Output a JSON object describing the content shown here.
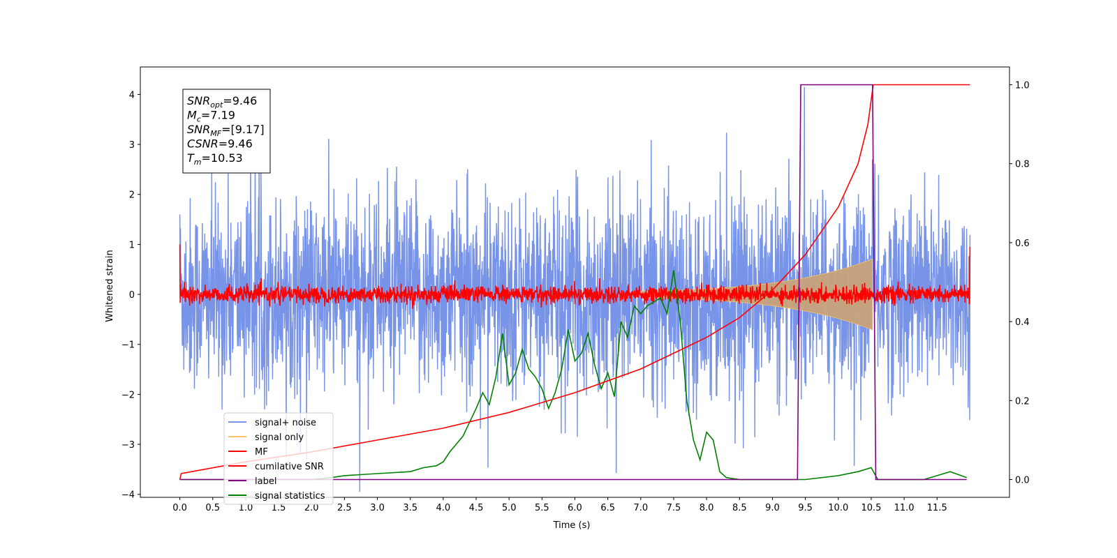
{
  "chart_data": {
    "type": "line",
    "xlabel": "Time (s)",
    "ylabel": "Whitened strain",
    "xlim": [
      -0.6,
      12.6
    ],
    "ylim": [
      -4.06,
      4.55
    ],
    "y2lim": [
      -0.045,
      1.045
    ],
    "x_ticks": [
      "0.0",
      "0.5",
      "1.0",
      "1.5",
      "2.0",
      "2.5",
      "3.0",
      "3.5",
      "4.0",
      "4.5",
      "5.0",
      "5.5",
      "6.0",
      "6.5",
      "7.0",
      "7.5",
      "8.0",
      "8.5",
      "9.0",
      "9.5",
      "10.0",
      "10.5",
      "11.0",
      "11.5"
    ],
    "y_ticks": [
      "4",
      "3",
      "2",
      "1",
      "0",
      "−1",
      "−2",
      "−3",
      "−4"
    ],
    "y2_ticks": [
      "1.0",
      "0.8",
      "0.6",
      "0.4",
      "0.2",
      "0.0"
    ],
    "grid": false,
    "legend_position": "lower-left",
    "annotation": [
      {
        "main": "SNR",
        "sub": "opt",
        "rest": "=9.46"
      },
      {
        "main": "M",
        "sub": "c",
        "rest": "=7.19"
      },
      {
        "main": "SNR",
        "sub": "MF",
        "rest": "=[9.17]"
      },
      {
        "main": "CSNR",
        "sub": "",
        "rest": "=9.46"
      },
      {
        "main": "T",
        "sub": "m",
        "rest": "=10.53"
      }
    ],
    "series": [
      {
        "name": "signal+ noise",
        "color": "#7894e8",
        "axis": "left",
        "description": "white noise, amplitude ~ ±2.3 with spikes to ±4.1, t = 0 to 12"
      },
      {
        "name": "signal only",
        "color": "#f5c26b",
        "axis": "left",
        "description": "chirp growing from 0 to amplitude ~0.7 up to 10.53 s"
      },
      {
        "name": "MF",
        "color": "#ff0000",
        "axis": "left",
        "description": "matched filter output, noise ~ ±0.15, endpoints 1.0 / 0.95"
      },
      {
        "name": "cumilative SNR",
        "color": "#ff0000",
        "axis": "right",
        "x": [
          0.0,
          0.02,
          1.0,
          2.0,
          3.0,
          4.0,
          5.0,
          6.0,
          7.0,
          7.5,
          8.0,
          8.5,
          9.0,
          9.5,
          10.0,
          10.3,
          10.45,
          10.53,
          10.6,
          12.0
        ],
        "y": [
          0.0,
          0.015,
          0.045,
          0.07,
          0.1,
          0.13,
          0.17,
          0.22,
          0.28,
          0.32,
          0.36,
          0.41,
          0.48,
          0.57,
          0.69,
          0.8,
          0.9,
          1.0,
          1.0,
          1.0
        ]
      },
      {
        "name": "label",
        "color": "#800080",
        "axis": "right",
        "x": [
          0.0,
          9.38,
          9.43,
          10.52,
          10.57,
          11.95
        ],
        "y": [
          0.0,
          0.0,
          1.0,
          1.0,
          0.0,
          0.0
        ]
      },
      {
        "name": "signal statistics",
        "color": "#008000",
        "axis": "right",
        "x": [
          0.0,
          0.5,
          1.0,
          1.5,
          2.0,
          2.3,
          2.5,
          3.0,
          3.5,
          3.7,
          3.9,
          4.0,
          4.1,
          4.2,
          4.3,
          4.5,
          4.6,
          4.7,
          4.8,
          4.9,
          5.0,
          5.1,
          5.2,
          5.3,
          5.4,
          5.5,
          5.6,
          5.7,
          5.8,
          5.9,
          6.0,
          6.1,
          6.2,
          6.3,
          6.4,
          6.5,
          6.6,
          6.7,
          6.8,
          6.9,
          7.0,
          7.1,
          7.2,
          7.3,
          7.4,
          7.5,
          7.6,
          7.7,
          7.8,
          7.9,
          8.0,
          8.1,
          8.2,
          8.3,
          8.5,
          9.0,
          9.5,
          10.0,
          10.3,
          10.5,
          10.6,
          11.0,
          11.3,
          11.5,
          11.7,
          11.95
        ],
        "y": [
          0.0,
          0.0,
          0.0,
          0.0,
          0.0,
          0.005,
          0.01,
          0.015,
          0.02,
          0.03,
          0.035,
          0.045,
          0.07,
          0.09,
          0.11,
          0.18,
          0.22,
          0.19,
          0.26,
          0.37,
          0.24,
          0.27,
          0.33,
          0.28,
          0.26,
          0.23,
          0.18,
          0.22,
          0.28,
          0.38,
          0.3,
          0.32,
          0.37,
          0.29,
          0.23,
          0.27,
          0.21,
          0.4,
          0.36,
          0.44,
          0.42,
          0.44,
          0.45,
          0.46,
          0.42,
          0.53,
          0.4,
          0.2,
          0.1,
          0.05,
          0.12,
          0.1,
          0.02,
          0.005,
          0.0,
          0.0,
          0.0,
          0.01,
          0.02,
          0.03,
          0.0,
          0.0,
          0.0,
          0.01,
          0.02,
          0.005
        ]
      }
    ]
  }
}
